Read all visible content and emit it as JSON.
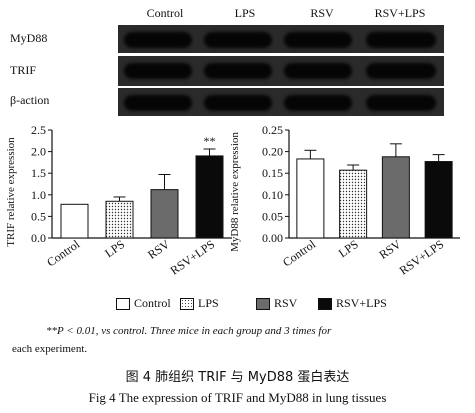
{
  "lanes": [
    "Control",
    "LPS",
    "RSV",
    "RSV+LPS"
  ],
  "blot_labels": [
    "MyD88",
    "TRIF",
    "β-action"
  ],
  "chart_data": [
    {
      "type": "bar",
      "categories": [
        "Control",
        "LPS",
        "RSV",
        "RSV+LPS"
      ],
      "values": [
        0.78,
        0.85,
        1.12,
        1.9
      ],
      "errors": [
        0.0,
        0.1,
        0.35,
        0.16
      ],
      "ylabel": "TRIF relative expression",
      "ylim": [
        0,
        2.5
      ],
      "yticks": [
        "0.0",
        "0.5",
        "1.0",
        "1.5",
        "2.0",
        "2.5"
      ],
      "yticks_values": [
        0,
        0.5,
        1.0,
        1.5,
        2.0,
        2.5
      ],
      "annotation": "**",
      "annotation_index": 3
    },
    {
      "type": "bar",
      "categories": [
        "Control",
        "LPS",
        "RSV",
        "RSV+LPS"
      ],
      "values": [
        0.183,
        0.157,
        0.188,
        0.177
      ],
      "errors": [
        0.02,
        0.012,
        0.03,
        0.016
      ],
      "ylabel": "MyD88 relative expression",
      "ylim": [
        0,
        0.25
      ],
      "yticks": [
        "0.00",
        "0.05",
        "0.10",
        "0.15",
        "0.20",
        "0.25"
      ],
      "yticks_values": [
        0,
        0.05,
        0.1,
        0.15,
        0.2,
        0.25
      ]
    }
  ],
  "legend": [
    "Control",
    "LPS",
    "RSV",
    "RSV+LPS"
  ],
  "colors": {
    "control": "#ffffff",
    "lps": "#dedede",
    "rsv": "#6b6b6b",
    "rsv_lps": "#0a0a0a",
    "blot_bg": "#2a2a2a"
  },
  "caption": {
    "line1": "**P < 0.01, vs control. Three mice in each group and 3 times for",
    "line2": "each experiment."
  },
  "figure_title_cn": "图 4 肺组织 TRIF 与 MyD88 蛋白表达",
  "figure_title_en": "Fig 4   The expression of TRIF and MyD88 in lung tissues"
}
